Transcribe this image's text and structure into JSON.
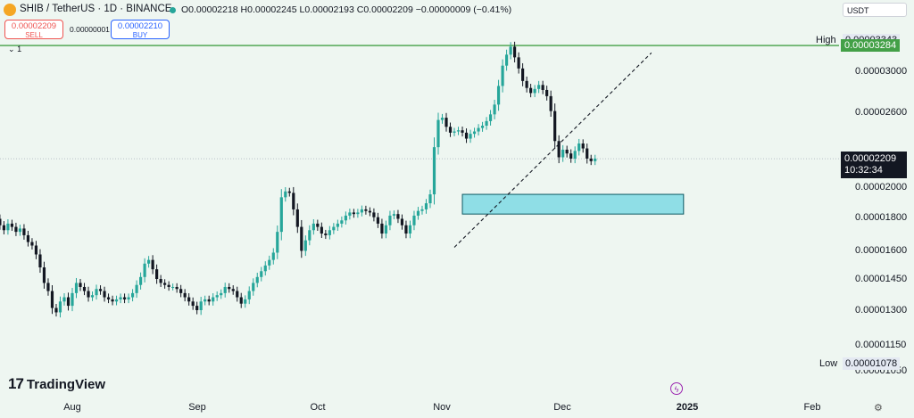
{
  "header": {
    "symbol": "SHIB / TetherUS · 1D · BINANCE",
    "ohlc": "O0.00002218 H0.00002245 L0.00002193 C0.00002209 −0.00000009 (−0.41%)",
    "currency": "USDT",
    "sell_price": "0.00002209",
    "sell_label": "SELL",
    "spread": "0.00000001",
    "buy_price": "0.00002210",
    "buy_label": "BUY",
    "collapse_label": "1"
  },
  "branding": {
    "logo_mark": "17",
    "logo_text": "TradingView"
  },
  "axis": {
    "x_labels": [
      "Aug",
      "Sep",
      "Oct",
      "Nov",
      "Dec",
      "2025",
      "Feb"
    ],
    "y_labels": [
      "0.00003000",
      "0.00002600",
      "0.00002000",
      "0.00001800",
      "0.00001600",
      "0.00001450",
      "0.00001300",
      "0.00001150",
      "0.00001050"
    ]
  },
  "markers": {
    "high_tag": "High",
    "high_value": "0.00003343",
    "low_tag": "Low",
    "low_value": "0.00001078",
    "resistance_value": "0.00003284",
    "last_price": "0.00002209",
    "countdown": "10:32:34"
  },
  "colors": {
    "up": "#26a69a",
    "down": "#131722",
    "zone": "#8fdee6",
    "resistance": "#43a047",
    "background": "#eef6f1"
  },
  "chart_data": {
    "type": "candlestick",
    "title": "SHIB / TetherUS · 1D · BINANCE",
    "y_scale": "log",
    "ylim": [
      1.03e-05,
      3.45e-05
    ],
    "x_ticks": [
      {
        "label": "Aug",
        "date": "2024-08-01"
      },
      {
        "label": "Sep",
        "date": "2024-09-01"
      },
      {
        "label": "Oct",
        "date": "2024-10-01"
      },
      {
        "label": "Nov",
        "date": "2024-11-01"
      },
      {
        "label": "Dec",
        "date": "2024-12-01"
      },
      {
        "label": "2025",
        "date": "2025-01-01"
      },
      {
        "label": "Feb",
        "date": "2025-02-01"
      }
    ],
    "high": 3.343e-05,
    "low": 1.078e-05,
    "last": 2.209e-05,
    "resistance_line": 3.284e-05,
    "support_zone": {
      "from": "2024-11-06",
      "to": "2024-12-31",
      "low": 1.82e-05,
      "high": 1.95e-05
    },
    "trendline": {
      "from": {
        "date": "2024-11-04",
        "value": 1.62e-05
      },
      "to": {
        "date": "2024-12-23",
        "value": 3.2e-05
      }
    },
    "close_series": {
      "start_date": "2024-07-01",
      "closes": [
        1.92e-05,
        1.89e-05,
        1.84e-05,
        1.75e-05,
        1.83e-05,
        1.8e-05,
        1.82e-05,
        1.83e-05,
        1.85e-05,
        1.8e-05,
        1.78e-05,
        1.81e-05,
        1.79e-05,
        1.75e-05,
        1.72e-05,
        1.76e-05,
        1.74e-05,
        1.71e-05,
        1.73e-05,
        1.69e-05,
        1.65e-05,
        1.63e-05,
        1.58e-05,
        1.51e-05,
        1.43e-05,
        1.39e-05,
        1.31e-05,
        1.29e-05,
        1.34e-05,
        1.36e-05,
        1.32e-05,
        1.38e-05,
        1.43e-05,
        1.41e-05,
        1.39e-05,
        1.36e-05,
        1.37e-05,
        1.4e-05,
        1.39e-05,
        1.36e-05,
        1.35e-05,
        1.34e-05,
        1.35e-05,
        1.36e-05,
        1.35e-05,
        1.36e-05,
        1.38e-05,
        1.42e-05,
        1.46e-05,
        1.53e-05,
        1.55e-05,
        1.5e-05,
        1.45e-05,
        1.43e-05,
        1.42e-05,
        1.41e-05,
        1.41e-05,
        1.4e-05,
        1.38e-05,
        1.36e-05,
        1.34e-05,
        1.32e-05,
        1.3e-05,
        1.34e-05,
        1.35e-05,
        1.34e-05,
        1.36e-05,
        1.37e-05,
        1.38e-05,
        1.41e-05,
        1.4e-05,
        1.39e-05,
        1.36e-05,
        1.33e-05,
        1.35e-05,
        1.39e-05,
        1.43e-05,
        1.46e-05,
        1.49e-05,
        1.52e-05,
        1.55e-05,
        1.59e-05,
        1.71e-05,
        1.93e-05,
        1.97e-05,
        1.96e-05,
        1.85e-05,
        1.74e-05,
        1.6e-05,
        1.66e-05,
        1.72e-05,
        1.76e-05,
        1.74e-05,
        1.7e-05,
        1.69e-05,
        1.72e-05,
        1.74e-05,
        1.76e-05,
        1.78e-05,
        1.81e-05,
        1.83e-05,
        1.82e-05,
        1.83e-05,
        1.85e-05,
        1.84e-05,
        1.83e-05,
        1.8e-05,
        1.76e-05,
        1.7e-05,
        1.75e-05,
        1.81e-05,
        1.82e-05,
        1.79e-05,
        1.75e-05,
        1.7e-05,
        1.75e-05,
        1.81e-05,
        1.84e-05,
        1.85e-05,
        1.89e-05,
        1.95e-05,
        2.3e-05,
        2.53e-05,
        2.55e-05,
        2.47e-05,
        2.42e-05,
        2.43e-05,
        2.44e-05,
        2.42e-05,
        2.37e-05,
        2.41e-05,
        2.43e-05,
        2.46e-05,
        2.48e-05,
        2.52e-05,
        2.58e-05,
        2.67e-05,
        2.85e-05,
        3.06e-05,
        3.18e-05,
        3.27e-05,
        3.15e-05,
        3.03e-05,
        2.9e-05,
        2.83e-05,
        2.78e-05,
        2.82e-05,
        2.86e-05,
        2.81e-05,
        2.75e-05,
        2.61e-05,
        2.35e-05,
        2.22e-05,
        2.28e-05,
        2.25e-05,
        2.21e-05,
        2.27e-05,
        2.33e-05,
        2.29e-05,
        2.21e-05,
        2.19e-05,
        2.21e-05
      ]
    },
    "labeled_candles": [
      {
        "date": "2024-12-18",
        "open": 2.38e-05,
        "high": 2.4e-05,
        "low": 1.85e-05,
        "close": 2.22e-05
      },
      {
        "date": "2025-01-01",
        "open": 2.218e-05,
        "high": 2.245e-05,
        "low": 2.193e-05,
        "close": 2.209e-05
      }
    ]
  }
}
